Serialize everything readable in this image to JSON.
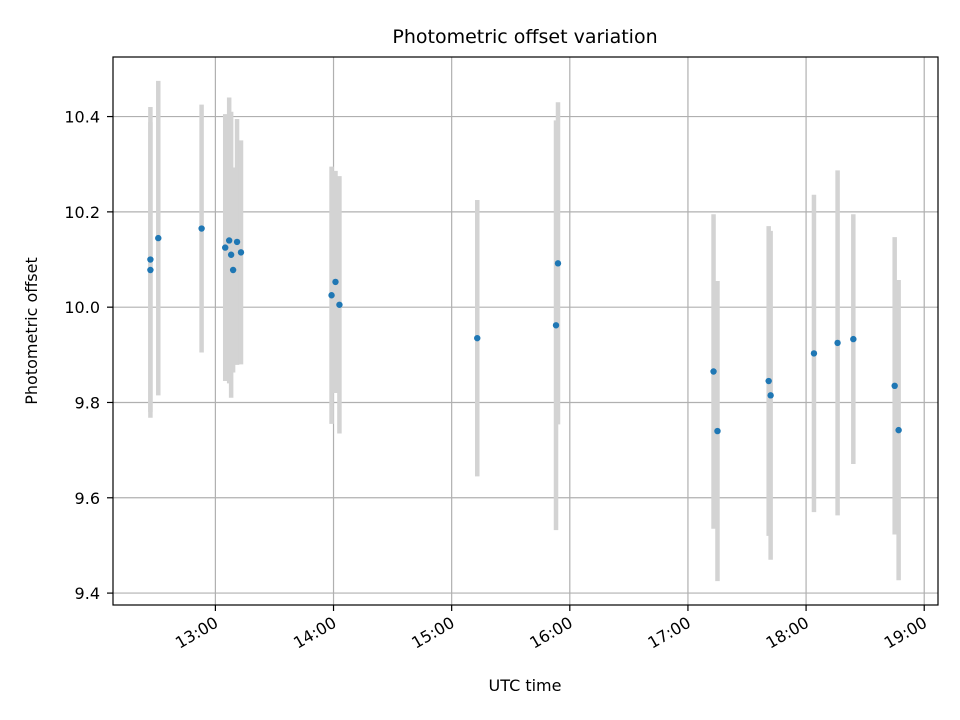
{
  "chart_data": {
    "type": "scatter",
    "title": "Photometric offset variation",
    "xlabel": "UTC time",
    "ylabel": "Photometric offset",
    "grid": true,
    "xlim": [
      "12:08",
      "19:07"
    ],
    "ylim": [
      9.375,
      10.525
    ],
    "x_ticks": [
      "13:00",
      "14:00",
      "15:00",
      "16:00",
      "17:00",
      "18:00",
      "19:00"
    ],
    "y_ticks": [
      "9.4",
      "9.6",
      "9.8",
      "10.0",
      "10.2",
      "10.4"
    ],
    "colors": {
      "points": "#1f77b4",
      "errorbars": "#d3d3d3",
      "grid": "#b0b0b0",
      "axes": "#000000"
    },
    "series": [
      {
        "points": [
          {
            "x": "12:27",
            "y": 10.1,
            "err": 0.32
          },
          {
            "x": "12:27",
            "y": 10.078,
            "err": 0.31
          },
          {
            "x": "12:31",
            "y": 10.145,
            "err": 0.33
          },
          {
            "x": "12:53",
            "y": 10.165,
            "err": 0.26
          },
          {
            "x": "13:05",
            "y": 10.125,
            "err": 0.28
          },
          {
            "x": "13:07",
            "y": 10.14,
            "err": 0.3
          },
          {
            "x": "13:08",
            "y": 10.11,
            "err": 0.3
          },
          {
            "x": "13:09",
            "y": 10.078,
            "err": 0.215
          },
          {
            "x": "13:11",
            "y": 10.137,
            "err": 0.258
          },
          {
            "x": "13:13",
            "y": 10.115,
            "err": 0.235
          },
          {
            "x": "13:59",
            "y": 10.025,
            "err": 0.27
          },
          {
            "x": "14:01",
            "y": 10.053,
            "err": 0.233
          },
          {
            "x": "14:03",
            "y": 10.005,
            "err": 0.27
          },
          {
            "x": "15:13",
            "y": 9.935,
            "err": 0.29
          },
          {
            "x": "15:53",
            "y": 9.962,
            "err": 0.43
          },
          {
            "x": "15:54",
            "y": 10.092,
            "err": 0.338
          },
          {
            "x": "17:13",
            "y": 9.865,
            "err": 0.33
          },
          {
            "x": "17:15",
            "y": 9.74,
            "err": 0.315
          },
          {
            "x": "17:41",
            "y": 9.845,
            "err": 0.325
          },
          {
            "x": "17:42",
            "y": 9.815,
            "err": 0.345
          },
          {
            "x": "18:04",
            "y": 9.903,
            "err": 0.333
          },
          {
            "x": "18:16",
            "y": 9.925,
            "err": 0.362
          },
          {
            "x": "18:24",
            "y": 9.933,
            "err": 0.262
          },
          {
            "x": "18:45",
            "y": 9.835,
            "err": 0.312
          },
          {
            "x": "18:47",
            "y": 9.742,
            "err": 0.315
          }
        ]
      }
    ]
  }
}
